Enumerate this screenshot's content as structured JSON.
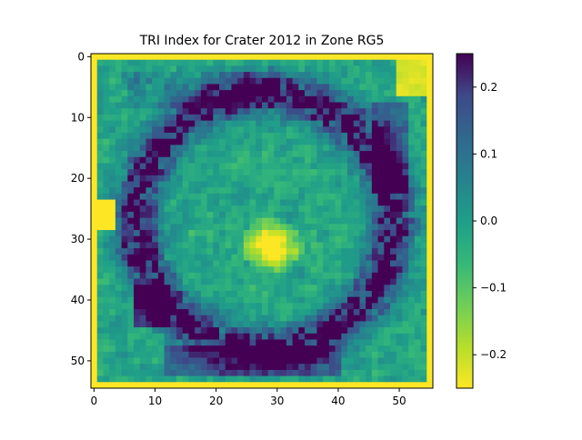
{
  "chart_data": {
    "type": "heatmap",
    "title": "TRI Index for Crater 2012 in Zone RG5",
    "xlabel": "",
    "ylabel": "",
    "grid": false,
    "colormap": "viridis_r",
    "rows": 55,
    "cols": 56,
    "x_ticks": [
      0,
      10,
      20,
      30,
      40,
      50
    ],
    "y_ticks": [
      0,
      10,
      20,
      30,
      40,
      50
    ],
    "colorbar": {
      "vmin": -0.25,
      "vmax": 0.25,
      "ticks": [
        0.2,
        0.1,
        0.0,
        -0.1,
        -0.2
      ],
      "tick_labels": [
        "0.2",
        "0.1",
        "0.0",
        "−0.1",
        "−0.2"
      ]
    },
    "description_regions": {
      "border_frame_value": -0.25,
      "dark_ring_value": 0.25,
      "center_highlight_value": -0.25,
      "interior_range": [
        -0.12,
        0.08
      ]
    }
  }
}
